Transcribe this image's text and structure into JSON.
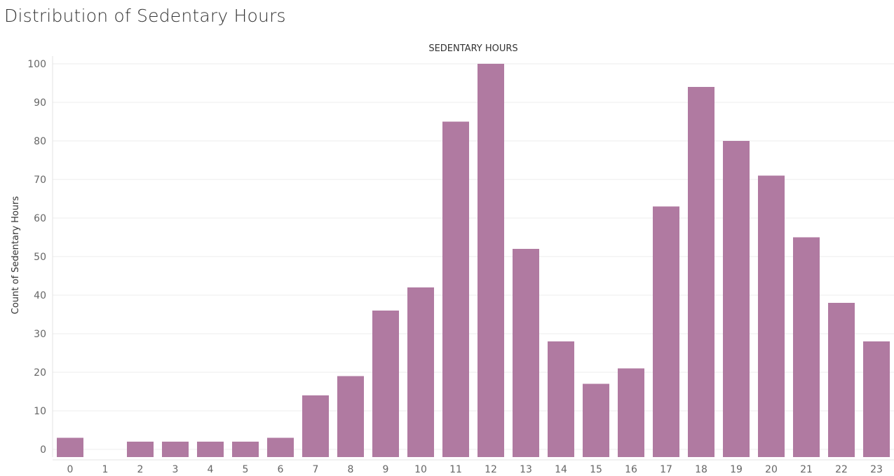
{
  "title": "Distribution of Sedentary Hours",
  "chart_data": {
    "type": "bar",
    "title": "Distribution of Sedentary Hours",
    "xlabel": "SEDENTARY HOURS",
    "ylabel": "Count of Sedentary Hours",
    "categories": [
      "0",
      "1",
      "2",
      "3",
      "4",
      "5",
      "6",
      "7",
      "8",
      "9",
      "10",
      "11",
      "12",
      "13",
      "14",
      "15",
      "16",
      "17",
      "18",
      "19",
      "20",
      "21",
      "22",
      "23"
    ],
    "values": [
      3,
      0,
      2,
      2,
      2,
      2,
      3,
      14,
      19,
      36,
      42,
      85,
      100,
      52,
      28,
      17,
      21,
      63,
      94,
      80,
      71,
      55,
      38,
      28
    ],
    "ylim": [
      -2,
      102
    ],
    "yticks": [
      0,
      10,
      20,
      30,
      40,
      50,
      60,
      70,
      80,
      90,
      100
    ],
    "grid": true,
    "legend": "none",
    "bar_color": "#b07aa1"
  }
}
